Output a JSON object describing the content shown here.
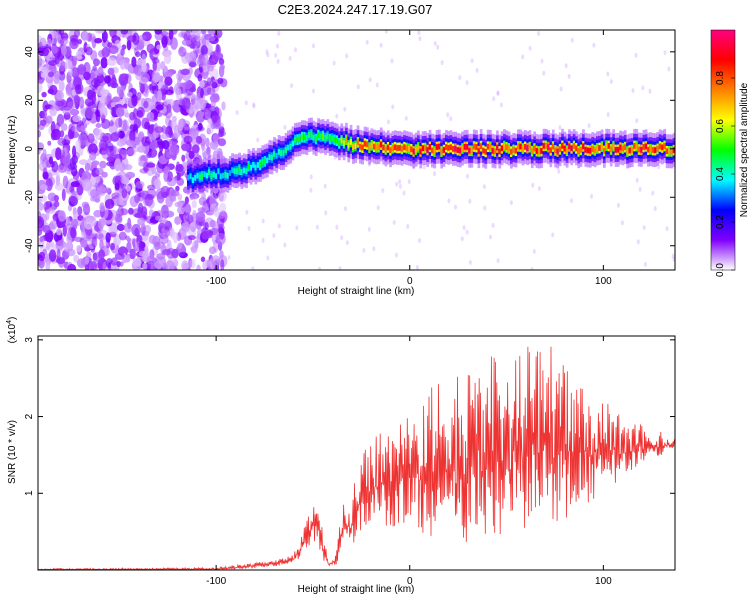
{
  "title": "C2E3.2024.247.17.19.G07",
  "chart_data": [
    {
      "type": "heatmap",
      "xlabel": "Height of straight line (km)",
      "ylabel": "Frequency (Hz)",
      "xlim": [
        -192,
        137
      ],
      "ylim": [
        -50,
        49
      ],
      "x_ticks": [
        -100,
        0,
        100
      ],
      "y_ticks": [
        -40,
        -20,
        0,
        20,
        40
      ],
      "colorbar": {
        "label": "Normalized spectral amplitude",
        "range": [
          0.0,
          1.0
        ],
        "ticks": [
          "0.0",
          "0.2",
          "0.4",
          "0.6",
          "0.8"
        ],
        "tick_values": [
          0.0,
          0.2,
          0.4,
          0.6,
          0.8
        ],
        "colors": [
          "#ffffff",
          "#8000ff",
          "#0000ff",
          "#00ffff",
          "#00ff00",
          "#ffff00",
          "#ff8000",
          "#ff0000",
          "#ff0080"
        ]
      },
      "noise_region": {
        "x_min": -192,
        "x_max": -96
      },
      "ridge": {
        "x": [
          -115,
          -105,
          -95,
          -85,
          -75,
          -65,
          -60,
          -55,
          -50,
          -45,
          -40,
          -35,
          -30,
          -20,
          -10,
          0,
          20,
          40,
          60,
          80,
          100,
          120,
          137
        ],
        "y": [
          -12,
          -11,
          -10,
          -8,
          -5,
          -1,
          3,
          5,
          5,
          5,
          4,
          3,
          2,
          1,
          0,
          0,
          0,
          0,
          0,
          0,
          0,
          0,
          0
        ],
        "amplitude": [
          0.35,
          0.45,
          0.4,
          0.45,
          0.45,
          0.4,
          0.45,
          0.55,
          0.5,
          0.55,
          0.55,
          0.65,
          0.75,
          0.85,
          0.9,
          0.85,
          0.9,
          0.85,
          0.9,
          0.9,
          0.85,
          0.9,
          0.85
        ]
      }
    },
    {
      "type": "line",
      "xlabel": "Height of straight line (km)",
      "ylabel": "SNR (10 * v/v)",
      "y_multiplier_label": "(x10",
      "y_multiplier_exp": "4",
      "y_multiplier_close": ")",
      "xlim": [
        -192,
        137
      ],
      "ylim": [
        0,
        3.05
      ],
      "x_ticks": [
        -100,
        0,
        100
      ],
      "y_ticks": [
        1,
        2,
        3
      ],
      "color": "#ee3333",
      "series": [
        {
          "x": [
            -192,
            -100,
            -90,
            -80,
            -70,
            -60,
            -55,
            -50,
            -47,
            -45,
            -42,
            -38,
            -35,
            -30,
            -28,
            -25,
            -20,
            -15,
            -10,
            -5,
            0,
            5,
            10,
            20,
            30,
            35,
            40,
            50,
            60,
            70,
            80,
            90,
            100,
            110,
            120,
            130,
            137
          ],
          "lower": [
            0.0,
            0.0,
            0.01,
            0.02,
            0.05,
            0.08,
            0.2,
            0.4,
            0.3,
            0.1,
            0.05,
            0.05,
            0.3,
            0.3,
            0.4,
            0.5,
            0.6,
            0.6,
            0.5,
            0.6,
            0.6,
            0.5,
            0.4,
            0.4,
            0.3,
            0.4,
            0.4,
            0.5,
            0.5,
            0.7,
            0.6,
            0.8,
            1.0,
            1.2,
            1.4,
            1.5,
            1.6
          ],
          "upper": [
            0.02,
            0.03,
            0.06,
            0.1,
            0.12,
            0.2,
            0.55,
            0.85,
            0.95,
            0.6,
            0.1,
            0.2,
            0.9,
            1.0,
            1.2,
            1.5,
            1.7,
            1.8,
            1.8,
            2.0,
            2.0,
            2.2,
            2.4,
            2.5,
            2.6,
            3.05,
            2.8,
            2.8,
            2.9,
            3.05,
            2.8,
            2.5,
            2.3,
            2.0,
            1.9,
            1.8,
            1.7
          ]
        }
      ]
    }
  ]
}
